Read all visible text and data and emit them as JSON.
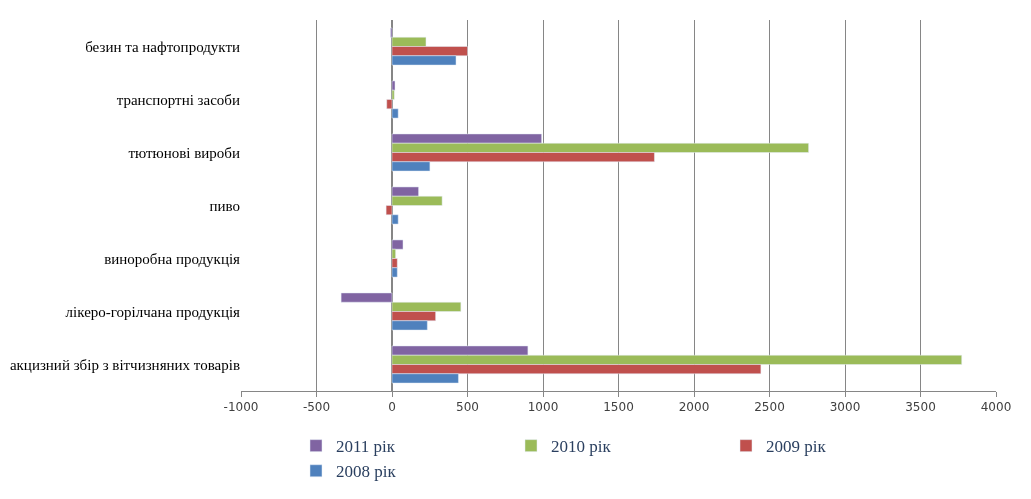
{
  "chart_data": {
    "type": "bar",
    "orientation": "horizontal",
    "categories": [
      "безин та нафтопродукти",
      "транспортні засоби",
      "тютюнові вироби",
      "пиво",
      "виноробна продукція",
      "лікеро-горілчана продукція",
      "акцизний збір з вітчизняних товарів"
    ],
    "series": [
      {
        "name": "2011 рік",
        "color": "#8064a2",
        "values": [
          -10,
          20,
          991,
          176,
          73,
          -337,
          900
        ]
      },
      {
        "name": "2010 рік",
        "color": "#9bbb59",
        "values": [
          225,
          15,
          2759,
          332,
          24,
          456,
          3773
        ]
      },
      {
        "name": "2009 рік",
        "color": "#c0504d",
        "values": [
          500,
          -35,
          1738,
          -39,
          35,
          289,
          2443
        ]
      },
      {
        "name": "2008 рік",
        "color": "#4f81bd",
        "values": [
          424,
          41,
          251,
          41,
          35,
          234,
          440
        ]
      }
    ],
    "xlim": [
      -1000,
      4000
    ],
    "xticks": [
      -1000,
      -500,
      0,
      500,
      1000,
      1500,
      2000,
      2500,
      3000,
      3500,
      4000
    ],
    "grid": "x",
    "legend": "bottom"
  }
}
